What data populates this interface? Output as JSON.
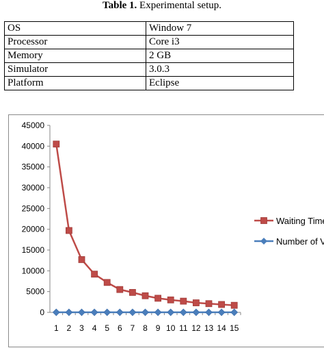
{
  "caption": {
    "label": "Table 1.",
    "text": "Experimental setup."
  },
  "table": {
    "rows": [
      {
        "key": "OS",
        "value": "Window 7"
      },
      {
        "key": "Processor",
        "value": "Core i3"
      },
      {
        "key": "Memory",
        "value": "2 GB"
      },
      {
        "key": "Simulator",
        "value": "3.0.3"
      },
      {
        "key": "Platform",
        "value": "Eclipse"
      }
    ]
  },
  "chart_data": {
    "type": "line",
    "x": [
      1,
      2,
      3,
      4,
      5,
      6,
      7,
      8,
      9,
      10,
      11,
      12,
      13,
      14,
      15
    ],
    "ylim": [
      0,
      45000
    ],
    "yticks": [
      0,
      5000,
      10000,
      15000,
      20000,
      25000,
      30000,
      35000,
      40000,
      45000
    ],
    "grid": false,
    "legend": "right",
    "series": [
      {
        "name": "Waiting Time",
        "color": "#be4b48",
        "marker": "square",
        "values": [
          40500,
          19700,
          12700,
          9200,
          7200,
          5500,
          4800,
          4000,
          3400,
          3000,
          2700,
          2300,
          2100,
          1900,
          1700
        ]
      },
      {
        "name": "Number of V",
        "color": "#4a7ebb",
        "marker": "diamond",
        "values": [
          15,
          15,
          15,
          15,
          15,
          15,
          15,
          15,
          15,
          15,
          15,
          15,
          15,
          15,
          15
        ]
      }
    ]
  }
}
